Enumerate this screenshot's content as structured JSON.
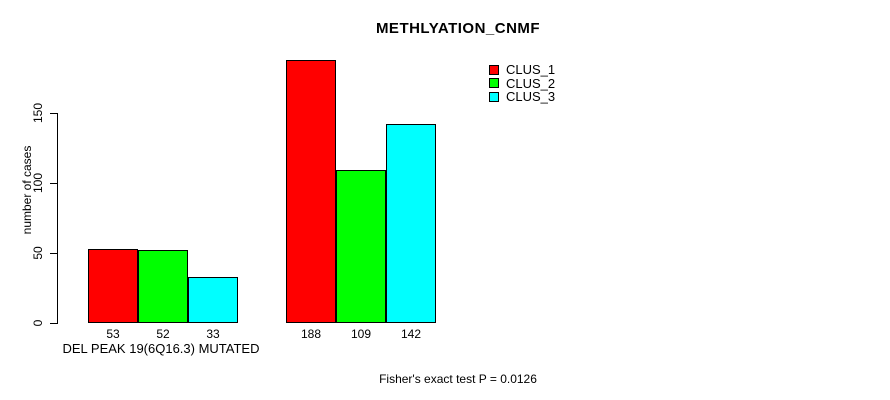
{
  "chart_data": {
    "type": "bar",
    "title": "METHLYATION_CNMF",
    "ylabel": "number of cases",
    "xlabel": "",
    "yticks": [
      0,
      50,
      100,
      150
    ],
    "ylim": [
      0,
      150
    ],
    "grid": false,
    "legend_position": "top-right",
    "series": [
      {
        "name": "CLUS_1",
        "color": "#FF0000",
        "values": [
          53,
          188
        ]
      },
      {
        "name": "CLUS_2",
        "color": "#00FF00",
        "values": [
          52,
          109
        ]
      },
      {
        "name": "CLUS_3",
        "color": "#00FFFF",
        "values": [
          33,
          142
        ]
      }
    ],
    "groups": [
      {
        "label": "DEL PEAK 19(6Q16.3) MUTATED",
        "values": [
          53,
          52,
          33
        ]
      },
      {
        "label": "",
        "values": [
          188,
          109,
          142
        ]
      }
    ],
    "bar_value_labels": [
      [
        "53",
        "52",
        "33"
      ],
      [
        "188",
        "109",
        "142"
      ]
    ],
    "annotation": "Fisher's exact test P = 0.0126"
  }
}
